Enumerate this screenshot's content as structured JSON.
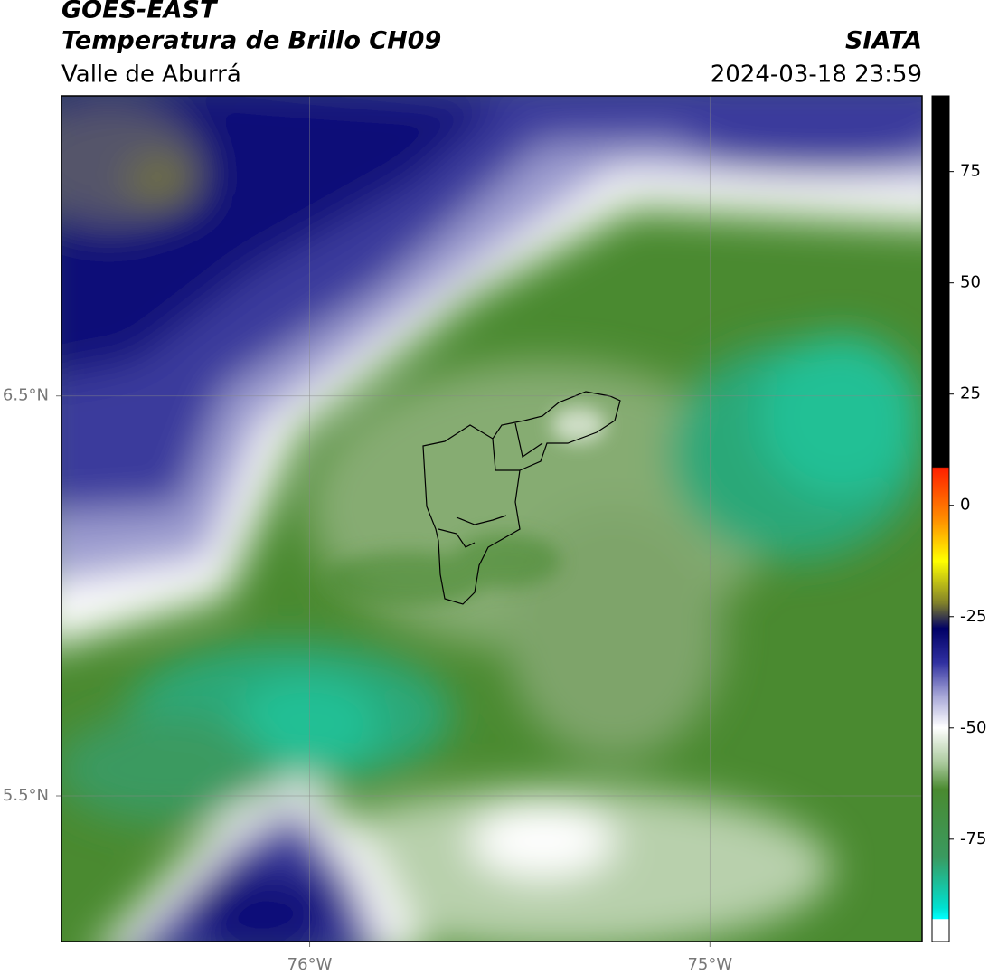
{
  "header": {
    "title": "GOES-EAST",
    "subtitle": "Temperatura de Brillo CH09",
    "region": "Valle de Aburrá",
    "source": "SIATA",
    "datetime": "2024-03-18 23:59"
  },
  "map": {
    "xlim": [
      -76.62,
      -74.47
    ],
    "ylim": [
      5.136,
      7.25
    ],
    "xticks": [
      {
        "value": -76,
        "label": "76°W"
      },
      {
        "value": -75,
        "label": "75°W"
      }
    ],
    "yticks": [
      {
        "value": 6.5,
        "label": "6.5°N"
      },
      {
        "value": 5.5,
        "label": "5.5°N"
      }
    ],
    "grid": true
  },
  "colorbar": {
    "lim": [
      -98,
      92
    ],
    "ticks": [
      75,
      50,
      25,
      0,
      -25,
      -50,
      -75
    ]
  }
}
